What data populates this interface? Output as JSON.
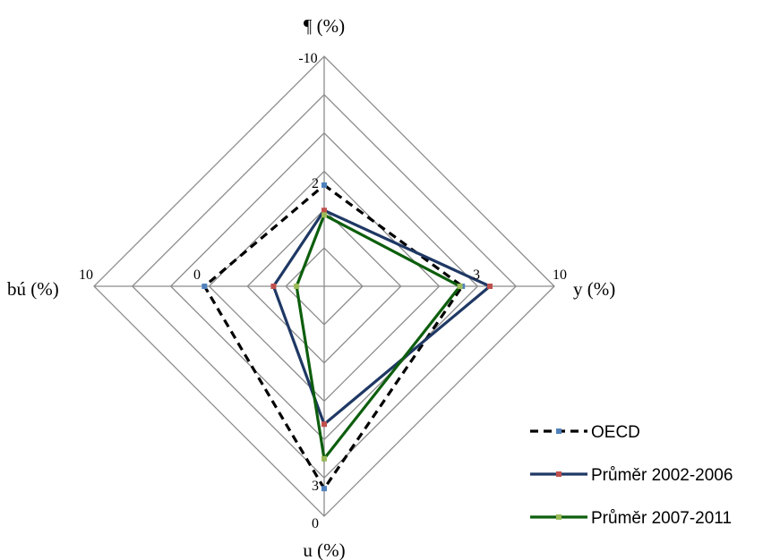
{
  "chart_data": {
    "type": "radar",
    "axes": [
      {
        "key": "top",
        "label": "¶ (%)",
        "center_tick": "",
        "outer_tick": "-10",
        "mid_tick": "2"
      },
      {
        "key": "right",
        "label": "y (%)",
        "center_tick": "",
        "outer_tick": "10",
        "mid_tick": "3"
      },
      {
        "key": "bottom",
        "label": "u (%)",
        "center_tick": "0",
        "outer_tick": "",
        "mid_tick": "3"
      },
      {
        "key": "left",
        "label": "bú (%)",
        "center_tick": "",
        "outer_tick": "10",
        "mid_tick": "0"
      }
    ],
    "scale": {
      "min": 0,
      "max": 1,
      "rings": 6
    },
    "series": [
      {
        "name": "OECD",
        "color": "#000000",
        "marker_color": "#4f81bd",
        "dash": true,
        "values": {
          "top": 0.44,
          "right": 0.6,
          "bottom": 0.88,
          "left": 0.52
        }
      },
      {
        "name": "Průměr 2002-2006",
        "color": "#1f3864",
        "marker_color": "#c0504d",
        "dash": false,
        "values": {
          "top": 0.33,
          "right": 0.72,
          "bottom": 0.6,
          "left": 0.22
        }
      },
      {
        "name": "Průměr 2007-2011",
        "color": "#0d5e0d",
        "marker_color": "#9bbb59",
        "dash": false,
        "values": {
          "top": 0.31,
          "right": 0.59,
          "bottom": 0.75,
          "left": 0.12
        }
      }
    ],
    "legend_position": "bottom-right",
    "grid": true
  }
}
